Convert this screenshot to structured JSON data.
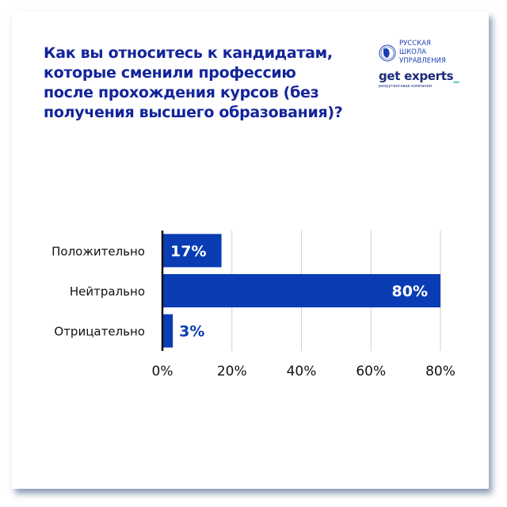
{
  "header": {
    "title": "Как вы относитесь к кандидатам, которые сменили профессию после прохождения курсов (без получения высшего образования)?"
  },
  "logo": {
    "rsu_lines": [
      "РУССКАЯ",
      "ШКОЛА",
      "УПРАВЛЕНИЯ"
    ],
    "brand": "get experts",
    "brand_suffix": "_",
    "brand_sub": "рекрутинговая компания"
  },
  "colors": {
    "bar": "#0a3db3",
    "title": "#13249a",
    "grid": "#d0d0d0",
    "axis": "#111111"
  },
  "chart_data": {
    "type": "bar",
    "orientation": "horizontal",
    "categories": [
      "Положительно",
      "Нейтрально",
      "Отрицательно"
    ],
    "values": [
      17,
      80,
      3
    ],
    "data_labels": [
      "17%",
      "80%",
      "3%"
    ],
    "xlim": [
      0,
      80
    ],
    "xticks": [
      0,
      20,
      40,
      60,
      80
    ],
    "xtick_labels": [
      "0%",
      "20%",
      "40%",
      "60%",
      "80%"
    ],
    "grid": true,
    "xlabel": "",
    "ylabel": ""
  }
}
